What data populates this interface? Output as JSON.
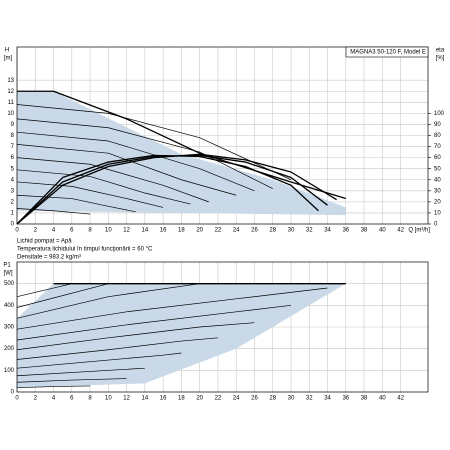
{
  "chart_data": [
    {
      "type": "line",
      "title": "MAGNA3 50-120 F, Model E",
      "ylabel": "H",
      "yunit": "[m]",
      "y2label": "eta",
      "y2unit": "[%]",
      "xlabel": "Q [m³/h]",
      "notes": [
        "Lichid pompat = Apă",
        "Temperatura lichidului în timpul funcţionării = 60 °C",
        "Densitate = 983.2 kg/m³"
      ],
      "xlim": [
        0,
        45
      ],
      "xticks": [
        0,
        2,
        4,
        6,
        8,
        10,
        12,
        14,
        16,
        18,
        20,
        22,
        24,
        26,
        28,
        30,
        32,
        34,
        36,
        38,
        40,
        42
      ],
      "ylim": [
        0,
        16
      ],
      "yticks": [
        0,
        1,
        2,
        3,
        4,
        5,
        6,
        7,
        8,
        9,
        10,
        11,
        12,
        13
      ],
      "y2lim": [
        0,
        160
      ],
      "y2ticks": [
        0,
        10,
        20,
        30,
        40,
        50,
        60,
        70,
        80,
        90,
        100
      ],
      "grid": true,
      "line_color": "#000000",
      "area_color": "#c9d9e8",
      "area": {
        "x": [
          0,
          4,
          18,
          28,
          36,
          36,
          0
        ],
        "values": [
          12,
          12,
          6.3,
          4,
          1.5,
          0.8,
          1.2
        ]
      },
      "series": [
        {
          "x": [
            0,
            4,
            12,
            20,
            30,
            36
          ],
          "values": [
            12,
            12,
            9.5,
            6.4,
            3.8,
            2.3
          ],
          "width": 1.3
        },
        {
          "x": [
            0,
            10,
            20,
            30
          ],
          "values": [
            10.8,
            10,
            7.8,
            4
          ],
          "width": 0.7
        },
        {
          "x": [
            0,
            10,
            20,
            28
          ],
          "values": [
            9.5,
            8.7,
            6.5,
            3.2
          ],
          "width": 0.7
        },
        {
          "x": [
            0,
            10,
            20,
            26
          ],
          "values": [
            8.3,
            7.5,
            5,
            3
          ],
          "width": 0.7
        },
        {
          "x": [
            0,
            10,
            18,
            24
          ],
          "values": [
            7.2,
            6.4,
            4,
            2.6
          ],
          "width": 0.7
        },
        {
          "x": [
            0,
            8,
            16,
            21
          ],
          "values": [
            6,
            5.4,
            3.5,
            2
          ],
          "width": 0.7
        },
        {
          "x": [
            0,
            8,
            14,
            19
          ],
          "values": [
            4.9,
            4.3,
            2.8,
            1.8
          ],
          "width": 0.7
        },
        {
          "x": [
            0,
            6,
            12,
            16
          ],
          "values": [
            3.8,
            3.4,
            2.3,
            1.5
          ],
          "width": 0.7
        },
        {
          "x": [
            0,
            6,
            10,
            13
          ],
          "values": [
            2.6,
            2.3,
            1.6,
            1.1
          ],
          "width": 0.7
        },
        {
          "x": [
            0,
            4,
            8
          ],
          "values": [
            1.4,
            1.2,
            0.9
          ],
          "width": 0.7
        },
        {
          "x": [
            0,
            5,
            10,
            15,
            20,
            25,
            30,
            35
          ],
          "values": [
            0,
            35,
            52,
            60,
            63,
            58,
            47,
            22
          ],
          "axis": "y2",
          "width": 1.3
        },
        {
          "x": [
            0,
            5,
            10,
            15,
            20,
            25,
            30,
            34
          ],
          "values": [
            0,
            38,
            54,
            61,
            62,
            56,
            42,
            17
          ],
          "axis": "y2",
          "width": 1.3
        },
        {
          "x": [
            0,
            5,
            10,
            15,
            20,
            25,
            30,
            33
          ],
          "values": [
            0,
            42,
            56,
            62,
            61,
            52,
            35,
            12
          ],
          "axis": "y2",
          "width": 1.3
        }
      ]
    },
    {
      "type": "line",
      "ylabel": "P1",
      "yunit": "[W]",
      "xlim": [
        0,
        45
      ],
      "xticks": [
        0,
        2,
        4,
        6,
        8,
        10,
        12,
        14,
        16,
        18,
        20,
        22,
        24,
        26,
        28,
        30,
        32,
        34,
        36,
        38,
        40,
        42
      ],
      "ylim": [
        0,
        600
      ],
      "yticks": [
        0,
        100,
        200,
        300,
        400,
        500
      ],
      "grid": true,
      "line_color": "#000000",
      "area_color": "#c9d9e8",
      "area": {
        "x": [
          0,
          4,
          36,
          24,
          14,
          0
        ],
        "values": [
          340,
          500,
          500,
          200,
          40,
          20
        ]
      },
      "series": [
        {
          "x": [
            4,
            36
          ],
          "values": [
            500,
            500
          ],
          "width": 1.3
        },
        {
          "x": [
            0,
            6
          ],
          "values": [
            440,
            500
          ],
          "width": 0.7
        },
        {
          "x": [
            0,
            10
          ],
          "values": [
            390,
            500
          ],
          "width": 0.7
        },
        {
          "x": [
            0,
            10,
            20
          ],
          "values": [
            340,
            440,
            500
          ],
          "width": 0.7
        },
        {
          "x": [
            0,
            12,
            24,
            34
          ],
          "values": [
            290,
            370,
            430,
            480
          ],
          "width": 0.7
        },
        {
          "x": [
            0,
            12,
            24,
            30
          ],
          "values": [
            240,
            310,
            370,
            400
          ],
          "width": 0.7
        },
        {
          "x": [
            0,
            10,
            20,
            26
          ],
          "values": [
            195,
            250,
            300,
            320
          ],
          "width": 0.7
        },
        {
          "x": [
            0,
            10,
            18,
            22
          ],
          "values": [
            150,
            195,
            235,
            250
          ],
          "width": 0.7
        },
        {
          "x": [
            0,
            8,
            16,
            18
          ],
          "values": [
            110,
            140,
            170,
            180
          ],
          "width": 0.7
        },
        {
          "x": [
            0,
            8,
            14
          ],
          "values": [
            75,
            95,
            110
          ],
          "width": 0.7
        },
        {
          "x": [
            0,
            6,
            12
          ],
          "values": [
            45,
            55,
            62
          ],
          "width": 0.7
        },
        {
          "x": [
            0,
            4,
            8
          ],
          "values": [
            20,
            25,
            28
          ],
          "width": 0.7
        }
      ]
    }
  ]
}
